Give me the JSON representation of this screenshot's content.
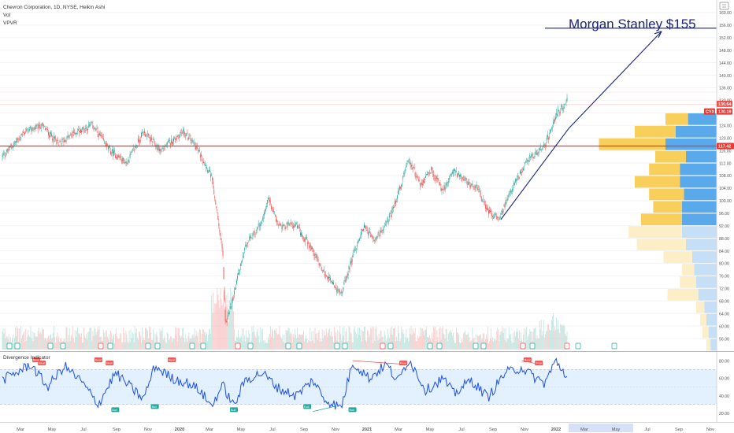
{
  "header": {
    "title": "Chevron Corporation, 1D, NYSE, Heikin Ashi",
    "indicator_vol": "Vol",
    "indicator_vpvr": "VPVR"
  },
  "annotation": {
    "text": "Morgan Stanley $155"
  },
  "colors": {
    "up": "#26a69a",
    "down": "#ef5350",
    "trend_line": "#1a237e",
    "resistance": "#e53935",
    "vp_up": "#5aa9ea",
    "vp_down": "#f8cf5b",
    "vp_up_light": "#c5dff7",
    "vp_down_light": "#fcefc7",
    "osc_line": "#1e50e8",
    "osc_band": "#e3f0fd"
  },
  "chart_data": [
    {
      "type": "candlestick",
      "title": "Chevron Corporation, 1D, NYSE, Heikin Ashi",
      "ylim": [
        52,
        164
      ],
      "y_ticks": [
        56,
        60,
        64,
        68,
        72,
        76,
        80,
        84,
        88,
        92,
        96,
        100,
        104,
        108,
        112,
        116,
        120,
        124,
        128,
        132,
        136,
        140,
        144,
        148,
        152,
        156,
        160
      ],
      "price_labels": {
        "last_close": "130.64",
        "current": "130.19",
        "symbol": "CVX",
        "resistance": "117.42"
      },
      "x_labels": [
        "Mar",
        "May",
        "Jul",
        "Sep",
        "Nov",
        "2020",
        "Mar",
        "May",
        "Jul",
        "Sep",
        "Nov",
        "2021",
        "Mar",
        "May",
        "Jul",
        "Sep",
        "Nov",
        "2022",
        "Mar",
        "May",
        "Jul",
        "Sep",
        "Nov"
      ],
      "price_path": [
        {
          "t": 0,
          "p": 114
        },
        {
          "t": 0.04,
          "p": 122
        },
        {
          "t": 0.07,
          "p": 124
        },
        {
          "t": 0.1,
          "p": 118
        },
        {
          "t": 0.13,
          "p": 122
        },
        {
          "t": 0.16,
          "p": 124
        },
        {
          "t": 0.19,
          "p": 116
        },
        {
          "t": 0.22,
          "p": 112
        },
        {
          "t": 0.25,
          "p": 122
        },
        {
          "t": 0.28,
          "p": 116
        },
        {
          "t": 0.32,
          "p": 122
        },
        {
          "t": 0.34,
          "p": 118
        },
        {
          "t": 0.37,
          "p": 108
        },
        {
          "t": 0.39,
          "p": 85
        },
        {
          "t": 0.395,
          "p": 60
        },
        {
          "t": 0.41,
          "p": 70
        },
        {
          "t": 0.43,
          "p": 86
        },
        {
          "t": 0.46,
          "p": 93
        },
        {
          "t": 0.47,
          "p": 101
        },
        {
          "t": 0.49,
          "p": 92
        },
        {
          "t": 0.52,
          "p": 92
        },
        {
          "t": 0.55,
          "p": 84
        },
        {
          "t": 0.57,
          "p": 77
        },
        {
          "t": 0.6,
          "p": 70
        },
        {
          "t": 0.62,
          "p": 82
        },
        {
          "t": 0.64,
          "p": 92
        },
        {
          "t": 0.66,
          "p": 87
        },
        {
          "t": 0.69,
          "p": 96
        },
        {
          "t": 0.72,
          "p": 113
        },
        {
          "t": 0.74,
          "p": 105
        },
        {
          "t": 0.76,
          "p": 110
        },
        {
          "t": 0.78,
          "p": 103
        },
        {
          "t": 0.8,
          "p": 110
        },
        {
          "t": 0.82,
          "p": 106
        },
        {
          "t": 0.84,
          "p": 104
        },
        {
          "t": 0.86,
          "p": 97
        },
        {
          "t": 0.88,
          "p": 94
        },
        {
          "t": 0.9,
          "p": 103
        },
        {
          "t": 0.93,
          "p": 113
        },
        {
          "t": 0.96,
          "p": 117
        },
        {
          "t": 0.98,
          "p": 127
        },
        {
          "t": 1.0,
          "p": 132
        }
      ],
      "trend_line": [
        {
          "x": "Oct 2021",
          "y": 94
        },
        {
          "x": "Jan 2022",
          "y": 123
        },
        {
          "x": "Jun 2022",
          "y": 154
        }
      ],
      "target_level": 155,
      "resistance_level": 117.42,
      "volume_profile": [
        {
          "price": 126,
          "up": 28,
          "down": 22,
          "strong": true
        },
        {
          "price": 122,
          "up": 40,
          "down": 40,
          "strong": true
        },
        {
          "price": 118,
          "up": 50,
          "down": 65,
          "strong": true
        },
        {
          "price": 114,
          "up": 30,
          "down": 30,
          "strong": true
        },
        {
          "price": 110,
          "up": 36,
          "down": 30,
          "strong": true
        },
        {
          "price": 106,
          "up": 36,
          "down": 44,
          "strong": true
        },
        {
          "price": 102,
          "up": 32,
          "down": 34,
          "strong": true
        },
        {
          "price": 98,
          "up": 34,
          "down": 28,
          "strong": true
        },
        {
          "price": 94,
          "up": 34,
          "down": 40,
          "strong": true
        },
        {
          "price": 90,
          "up": 34,
          "down": 52,
          "strong": false
        },
        {
          "price": 86,
          "up": 30,
          "down": 48,
          "strong": false
        },
        {
          "price": 82,
          "up": 24,
          "down": 28,
          "strong": false
        },
        {
          "price": 78,
          "up": 22,
          "down": 12,
          "strong": false
        },
        {
          "price": 74,
          "up": 20,
          "down": 16,
          "strong": false
        },
        {
          "price": 70,
          "up": 18,
          "down": 30,
          "strong": false
        },
        {
          "price": 66,
          "up": 12,
          "down": 8,
          "strong": false
        },
        {
          "price": 62,
          "up": 10,
          "down": 6,
          "strong": false
        },
        {
          "price": 58,
          "up": 8,
          "down": 6,
          "strong": false
        },
        {
          "price": 54,
          "up": 6,
          "down": 4,
          "strong": false
        }
      ]
    },
    {
      "type": "line",
      "title": "Divergence Indicator",
      "ylim": [
        10,
        90
      ],
      "y_ticks": [
        20,
        40,
        60,
        80
      ],
      "bands": [
        30,
        70
      ],
      "path": [
        {
          "t": 0,
          "v": 58
        },
        {
          "t": 0.03,
          "v": 68
        },
        {
          "t": 0.05,
          "v": 76
        },
        {
          "t": 0.08,
          "v": 50
        },
        {
          "t": 0.11,
          "v": 74
        },
        {
          "t": 0.14,
          "v": 56
        },
        {
          "t": 0.17,
          "v": 30
        },
        {
          "t": 0.2,
          "v": 66
        },
        {
          "t": 0.23,
          "v": 48
        },
        {
          "t": 0.25,
          "v": 36
        },
        {
          "t": 0.27,
          "v": 74
        },
        {
          "t": 0.3,
          "v": 60
        },
        {
          "t": 0.33,
          "v": 54
        },
        {
          "t": 0.35,
          "v": 46
        },
        {
          "t": 0.37,
          "v": 28
        },
        {
          "t": 0.39,
          "v": 52
        },
        {
          "t": 0.41,
          "v": 28
        },
        {
          "t": 0.43,
          "v": 58
        },
        {
          "t": 0.46,
          "v": 66
        },
        {
          "t": 0.49,
          "v": 48
        },
        {
          "t": 0.52,
          "v": 40
        },
        {
          "t": 0.55,
          "v": 58
        },
        {
          "t": 0.57,
          "v": 36
        },
        {
          "t": 0.6,
          "v": 26
        },
        {
          "t": 0.62,
          "v": 78
        },
        {
          "t": 0.65,
          "v": 60
        },
        {
          "t": 0.68,
          "v": 76
        },
        {
          "t": 0.7,
          "v": 56
        },
        {
          "t": 0.72,
          "v": 82
        },
        {
          "t": 0.75,
          "v": 46
        },
        {
          "t": 0.78,
          "v": 60
        },
        {
          "t": 0.8,
          "v": 42
        },
        {
          "t": 0.83,
          "v": 58
        },
        {
          "t": 0.86,
          "v": 38
        },
        {
          "t": 0.89,
          "v": 66
        },
        {
          "t": 0.92,
          "v": 72
        },
        {
          "t": 0.94,
          "v": 62
        },
        {
          "t": 0.96,
          "v": 54
        },
        {
          "t": 0.98,
          "v": 80
        },
        {
          "t": 1.0,
          "v": 62
        }
      ],
      "bear_labels": [
        {
          "t": 0.06,
          "text": "Bear"
        },
        {
          "t": 0.07,
          "text": "Bear"
        },
        {
          "t": 0.17,
          "text": "Bear"
        },
        {
          "t": 0.19,
          "text": "Bear"
        },
        {
          "t": 0.3,
          "text": "Bear"
        },
        {
          "t": 0.71,
          "text": "Bear"
        },
        {
          "t": 0.93,
          "text": "Bear"
        },
        {
          "t": 0.95,
          "text": "Bear"
        }
      ],
      "bull_labels": [
        {
          "t": 0.2,
          "text": "Bull"
        },
        {
          "t": 0.27,
          "text": "Bull"
        },
        {
          "t": 0.41,
          "text": "Bull"
        },
        {
          "t": 0.54,
          "text": "Bull"
        },
        {
          "t": 0.62,
          "text": "Bull"
        }
      ]
    }
  ],
  "x_axis_highlight": {
    "from": "Mar",
    "to": "May"
  }
}
